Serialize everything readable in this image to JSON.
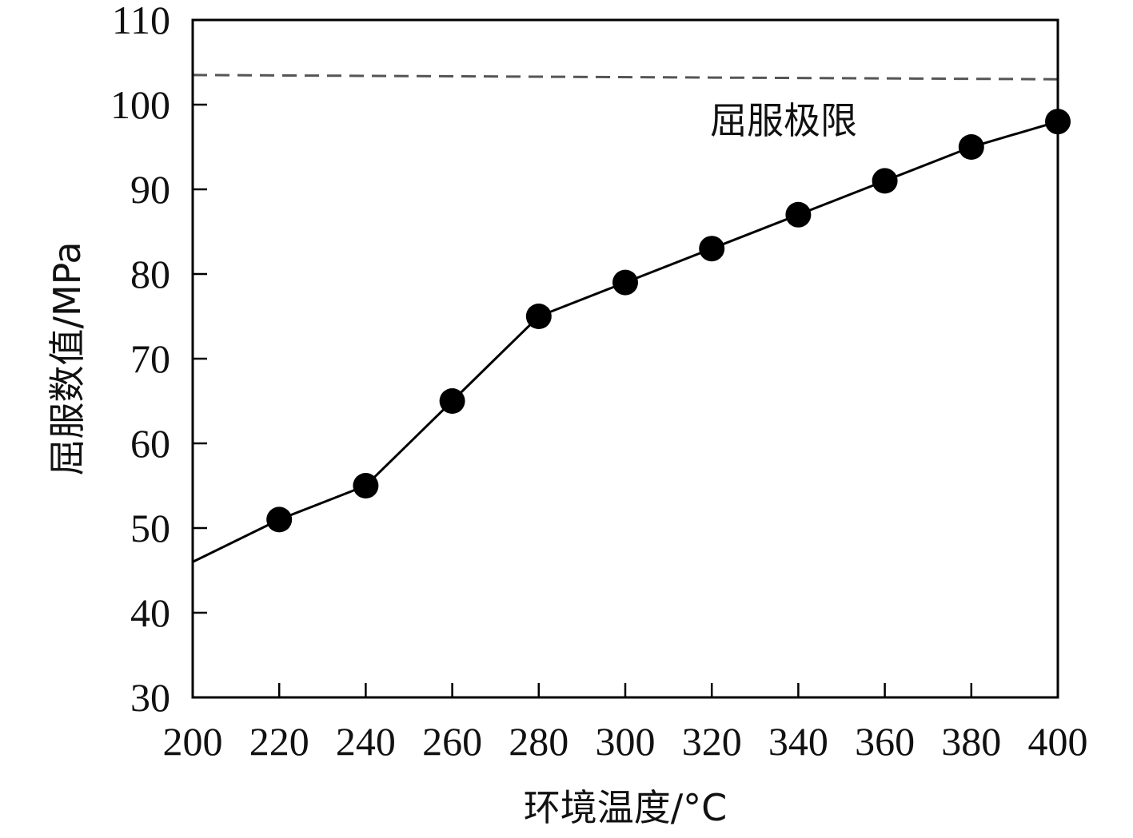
{
  "chart_data": {
    "type": "line",
    "xlabel": "环境温度/°C",
    "ylabel": "屈服数值/MPa",
    "xlim": [
      200,
      400
    ],
    "ylim": [
      30,
      110
    ],
    "x_ticks": [
      200,
      220,
      240,
      260,
      280,
      300,
      320,
      340,
      360,
      380,
      400
    ],
    "y_ticks": [
      30,
      40,
      50,
      60,
      70,
      80,
      90,
      100,
      110
    ],
    "grid": false,
    "series": [
      {
        "x": [
          200,
          220,
          240,
          260,
          280,
          300,
          320,
          340,
          360,
          380,
          400
        ],
        "y": [
          46,
          51,
          55,
          65,
          75,
          79,
          83,
          87,
          91,
          95,
          98
        ],
        "markers": [
          false,
          true,
          true,
          true,
          true,
          true,
          true,
          true,
          true,
          true,
          true
        ],
        "color": "#000000",
        "style": "solid"
      }
    ],
    "reference_line": {
      "label": "屈服极限",
      "y_start": 103.5,
      "y_end": 103,
      "color": "#555555",
      "style": "dashed"
    }
  }
}
